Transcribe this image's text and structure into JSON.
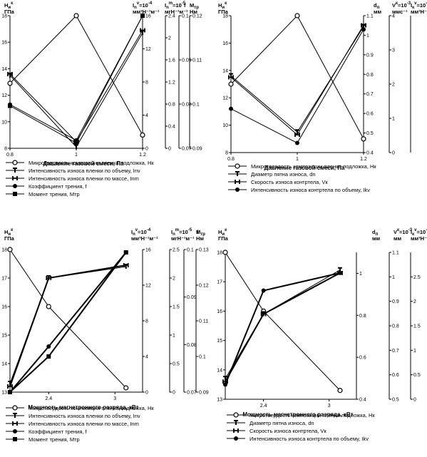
{
  "chart_data": [
    {
      "type": "line",
      "xlabel": "Давление газовой смеси, Па",
      "x": [
        0.8,
        1,
        1.2
      ],
      "x_ticks": [
        "0.8",
        "1",
        "1.2"
      ],
      "xlim": [
        0.8,
        1.2
      ],
      "axes": [
        {
          "label": "H",
          "sub": "и",
          "sup": "к",
          "unit": "ГПа",
          "ylim": [
            8,
            18
          ],
          "ticks": [
            "8",
            "10",
            "12",
            "14",
            "16",
            "18"
          ]
        },
        {
          "label": "I",
          "sub": "n",
          "sup": "v",
          "mult": "=10",
          "exp": "-4",
          "unit": "мм³Н⁻¹м⁻¹",
          "ylim": [
            0,
            16
          ],
          "ticks": [
            "0",
            "4",
            "8",
            "12",
            "16"
          ]
        },
        {
          "label": "I",
          "sub": "n",
          "sup": "m",
          "mult": "=10",
          "exp": "-5",
          "unit": "мгН⁻¹м⁻¹",
          "ylim": [
            0,
            2.4
          ],
          "ticks": [
            "0",
            "0.4",
            "0.8",
            "1.2",
            "1.6",
            "2",
            "2.4"
          ]
        },
        {
          "label": "f",
          "unit": "",
          "ylim": [
            0.07,
            0.1
          ],
          "ticks": [
            "0.07",
            "0.08",
            "0.09",
            "0.1"
          ]
        },
        {
          "label": "M",
          "sub": "тр",
          "unit": "Нм",
          "ylim": [
            0.09,
            0.12
          ],
          "ticks": [
            "0.09",
            "0.1",
            "0.11",
            "0.12"
          ]
        }
      ],
      "series": [
        {
          "name": "Микротвердость композиции пленка-подложка, Hк",
          "marker": "open-circle",
          "values": [
            12.9,
            18,
            9
          ]
        },
        {
          "name": "Интенсивность износа пленки по объему, Inv",
          "marker": "T",
          "values": [
            13.5,
            8.1,
            16.7
          ]
        },
        {
          "name": "Интенсивность износа пленки по массе, Inm",
          "marker": "H",
          "values": [
            13.6,
            8.5,
            16.9
          ]
        },
        {
          "name": "Коэффициент трения, f",
          "marker": "filled-circle",
          "values": [
            11.3,
            8.6,
            18
          ]
        },
        {
          "name": "Момент трения, Мтр",
          "marker": "filled-square",
          "values": [
            11.2,
            8.4,
            18
          ]
        }
      ]
    },
    {
      "type": "line",
      "xlabel": "Давление газовой смеси, Па",
      "x": [
        0.8,
        1,
        1.2
      ],
      "x_ticks": [
        "0.8",
        "1",
        "1.2"
      ],
      "xlim": [
        0.8,
        1.2
      ],
      "axes": [
        {
          "label": "H",
          "sub": "и",
          "sup": "к",
          "unit": "ГПа",
          "ylim": [
            8,
            18
          ],
          "ticks": [
            "8",
            "10",
            "12",
            "14",
            "16",
            "18"
          ]
        },
        {
          "label": "d",
          "sub": "п",
          "unit": "мм",
          "ylim": [
            0.4,
            1.1
          ],
          "ticks": [
            "0.4",
            "0.5",
            "0.6",
            "0.7",
            "0.8",
            "0.9",
            "1",
            "1.1"
          ]
        },
        {
          "label": "V",
          "sup": "к",
          "mult": "=10",
          "exp": "-3",
          "unit": "ммс⁻¹",
          "ylim": [
            0,
            4
          ],
          "ticks": [
            "0",
            "1",
            "2",
            "3",
            "4"
          ]
        },
        {
          "label": "I",
          "sub": "к",
          "sup": "v",
          "mult": "=10",
          "exp": "-8",
          "unit": "мм³Н⁻¹м⁻¹",
          "ylim": [
            0,
            4
          ],
          "ticks": []
        }
      ],
      "series": [
        {
          "name": "Микротвердость композиции пленка-подложка, Hк",
          "marker": "open-circle",
          "values": [
            13.0,
            18,
            9
          ]
        },
        {
          "name": "Диаметр пятна износа, dn",
          "marker": "T",
          "values": [
            13.6,
            9.5,
            17.2
          ]
        },
        {
          "name": "Скорость износа контртела, Vк",
          "marker": "H",
          "values": [
            13.5,
            9.3,
            17.3
          ]
        },
        {
          "name": "Интенсивность износа контртела по объему, Ikv",
          "marker": "filled-circle",
          "values": [
            11.2,
            8.7,
            17.0
          ]
        }
      ]
    },
    {
      "type": "line",
      "xlabel": "Мощность магнетронного разряда, кВт",
      "x": [
        2.05,
        2.4,
        3.1
      ],
      "x_ticks": [
        "2.4",
        "3"
      ],
      "xlim": [
        2.05,
        3.25
      ],
      "axes": [
        {
          "label": "H",
          "sub": "и",
          "sup": "к",
          "unit": "ГПа",
          "ylim": [
            13,
            18
          ],
          "ticks": [
            "13",
            "14",
            "15",
            "16",
            "17",
            "18"
          ]
        },
        {
          "label": "I",
          "sub": "n",
          "sup": "v",
          "mult": "=10",
          "exp": "-4",
          "unit": "мм³Н⁻¹м⁻¹",
          "ylim": [
            0,
            16
          ],
          "ticks": [
            "0",
            "4",
            "8",
            "12",
            "16"
          ]
        },
        {
          "label": "I",
          "sub": "n",
          "sup": "m",
          "mult": "=10",
          "exp": "-5",
          "unit": "мгН⁻¹м⁻¹",
          "ylim": [
            0,
            2.5
          ],
          "ticks": [
            "0",
            "0.5",
            "1",
            "1.5",
            "2",
            "2.5"
          ]
        },
        {
          "label": "f",
          "unit": "",
          "ylim": [
            0.07,
            0.1
          ],
          "ticks": [
            "0.07",
            "0.08",
            "0.09",
            "0.1"
          ]
        },
        {
          "label": "M",
          "sub": "тр",
          "unit": "Нм",
          "ylim": [
            0.09,
            0.13
          ],
          "ticks": [
            "0.09",
            "0.1",
            "0.11",
            "0.12",
            "0.13"
          ]
        }
      ],
      "series": [
        {
          "name": "Микротвердость композиции пленка-подложка, Нк",
          "marker": "open-circle",
          "values": [
            18,
            16,
            13.15
          ]
        },
        {
          "name": "Интенсивность износа пленки по объему, Inv",
          "marker": "T",
          "values": [
            13.3,
            17,
            17.4
          ]
        },
        {
          "name": "Интенсивность износа пленки по массе, Inm",
          "marker": "H",
          "values": [
            13.2,
            17,
            17.45
          ]
        },
        {
          "name": "Коэффициент трения, f",
          "marker": "filled-circle",
          "values": [
            13,
            14.6,
            17.9
          ]
        },
        {
          "name": "Момент трения, Мтр",
          "marker": "filled-square",
          "values": [
            13,
            14.25,
            17.9
          ]
        }
      ]
    },
    {
      "type": "line",
      "xlabel": "Мощность магнетронного разряда, кВт",
      "x": [
        2.05,
        2.4,
        3.1
      ],
      "x_ticks": [
        "2.4",
        "3"
      ],
      "xlim": [
        2.05,
        3.25
      ],
      "axes": [
        {
          "label": "H",
          "sub": "и",
          "sup": "к",
          "unit": "ГПа",
          "ylim": [
            13,
            18
          ],
          "ticks": [
            "13",
            "14",
            "15",
            "16",
            "17",
            "18"
          ]
        },
        {
          "label": "d",
          "sub": "п",
          "unit": "мм",
          "ylim": [
            0.4,
            1.1
          ],
          "ticks": [
            "0.4",
            "0.6",
            "0.8",
            "1"
          ]
        },
        {
          "label": "V",
          "sup": "к",
          "mult": "=10",
          "exp": "-3",
          "unit": "мм",
          "ylim": [
            0.5,
            1.1
          ],
          "ticks": [
            "0.5",
            "0.6",
            "0.7",
            "0.8",
            "0.9",
            "1",
            "1.1"
          ]
        },
        {
          "label": "I",
          "sub": "к",
          "sup": "v",
          "mult": "=10",
          "exp": "-8",
          "unit": "мм³Н⁻¹м⁻¹",
          "ylim": [
            0,
            3
          ],
          "ticks": [
            "0",
            "0.5",
            "1",
            "1.5",
            "2",
            "2.5"
          ]
        }
      ],
      "series": [
        {
          "name": "Микротвердость композиции пленка-подложка, Нк",
          "marker": "open-circle",
          "values": [
            18,
            16,
            13.3
          ]
        },
        {
          "name": "Диаметр пятна износа, dn",
          "marker": "T",
          "values": [
            13.7,
            15.9,
            17.4
          ]
        },
        {
          "name": "Скорость износа контртела, Vк",
          "marker": "H",
          "values": [
            13.6,
            15.9,
            17.3
          ]
        },
        {
          "name": "Интенсивность износа контртела по объему, Ikv",
          "marker": "filled-circle",
          "values": [
            13.5,
            16.7,
            17.3
          ]
        }
      ]
    }
  ]
}
